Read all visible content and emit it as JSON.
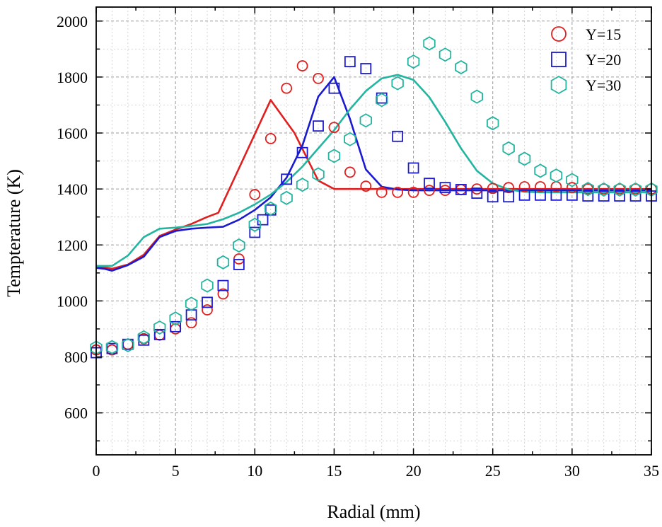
{
  "chart_data": {
    "type": "scatter",
    "xlabel": "Radial (mm)",
    "ylabel": "Tempterature (K)",
    "xlim": [
      0,
      35
    ],
    "ylim": [
      450,
      2050
    ],
    "xticks": [
      0,
      5,
      10,
      15,
      20,
      25,
      30,
      35
    ],
    "yticks": [
      600,
      800,
      1000,
      1200,
      1400,
      1600,
      1800,
      2000
    ],
    "grid": true,
    "legend_position": "top-right",
    "series": [
      {
        "name": "Y=15",
        "marker": "circle",
        "color": "#e02020",
        "points": [
          [
            0,
            825
          ],
          [
            1,
            825
          ],
          [
            2,
            845
          ],
          [
            3,
            865
          ],
          [
            4,
            878
          ],
          [
            5,
            900
          ],
          [
            6,
            922
          ],
          [
            7,
            968
          ],
          [
            8,
            1025
          ],
          [
            9,
            1150
          ],
          [
            10,
            1380
          ],
          [
            11,
            1580
          ],
          [
            12,
            1760
          ],
          [
            13,
            1840
          ],
          [
            14,
            1795
          ],
          [
            15,
            1620
          ],
          [
            16,
            1460
          ],
          [
            17,
            1410
          ],
          [
            18,
            1388
          ],
          [
            19,
            1388
          ],
          [
            20,
            1388
          ],
          [
            21,
            1395
          ],
          [
            22,
            1395
          ],
          [
            23,
            1398
          ],
          [
            24,
            1400
          ],
          [
            25,
            1402
          ],
          [
            26,
            1405
          ],
          [
            27,
            1408
          ],
          [
            28,
            1408
          ],
          [
            29,
            1408
          ],
          [
            30,
            1405
          ],
          [
            31,
            1400
          ],
          [
            32,
            1400
          ],
          [
            33,
            1400
          ],
          [
            34,
            1400
          ],
          [
            35,
            1400
          ]
        ],
        "line": [
          [
            0,
            1125
          ],
          [
            1,
            1115
          ],
          [
            2,
            1130
          ],
          [
            3,
            1165
          ],
          [
            4,
            1232
          ],
          [
            5,
            1255
          ],
          [
            6,
            1275
          ],
          [
            7,
            1300
          ],
          [
            7.7,
            1315
          ],
          [
            11,
            1718
          ],
          [
            12.5,
            1600
          ],
          [
            14,
            1430
          ],
          [
            15,
            1400
          ],
          [
            35,
            1400
          ]
        ]
      },
      {
        "name": "Y=20",
        "marker": "square",
        "color": "#1a1ad0",
        "points": [
          [
            0,
            815
          ],
          [
            1,
            830
          ],
          [
            2,
            845
          ],
          [
            3,
            860
          ],
          [
            4,
            880
          ],
          [
            5,
            908
          ],
          [
            6,
            950
          ],
          [
            7,
            995
          ],
          [
            8,
            1055
          ],
          [
            9,
            1130
          ],
          [
            10,
            1245
          ],
          [
            10.5,
            1290
          ],
          [
            11,
            1325
          ],
          [
            12,
            1435
          ],
          [
            13,
            1530
          ],
          [
            14,
            1625
          ],
          [
            15,
            1760
          ],
          [
            16,
            1855
          ],
          [
            17,
            1830
          ],
          [
            18,
            1725
          ],
          [
            19,
            1588
          ],
          [
            20,
            1475
          ],
          [
            21,
            1420
          ],
          [
            22,
            1405
          ],
          [
            23,
            1398
          ],
          [
            24,
            1385
          ],
          [
            25,
            1372
          ],
          [
            26,
            1372
          ],
          [
            27,
            1378
          ],
          [
            28,
            1378
          ],
          [
            29,
            1378
          ],
          [
            30,
            1378
          ],
          [
            31,
            1375
          ],
          [
            32,
            1375
          ],
          [
            33,
            1375
          ],
          [
            34,
            1375
          ],
          [
            35,
            1375
          ]
        ],
        "line": [
          [
            0,
            1118
          ],
          [
            0.5,
            1115
          ],
          [
            1,
            1108
          ],
          [
            2,
            1128
          ],
          [
            3,
            1158
          ],
          [
            4,
            1228
          ],
          [
            5,
            1250
          ],
          [
            6,
            1258
          ],
          [
            7,
            1262
          ],
          [
            8,
            1265
          ],
          [
            9,
            1290
          ],
          [
            10,
            1325
          ],
          [
            11,
            1370
          ],
          [
            12,
            1440
          ],
          [
            13,
            1555
          ],
          [
            14,
            1730
          ],
          [
            15,
            1800
          ],
          [
            16,
            1650
          ],
          [
            17,
            1470
          ],
          [
            18,
            1408
          ],
          [
            19,
            1398
          ],
          [
            20,
            1395
          ],
          [
            35,
            1395
          ]
        ]
      },
      {
        "name": "Y=30",
        "marker": "hexagon",
        "color": "#22b5a0",
        "points": [
          [
            0,
            833
          ],
          [
            1,
            835
          ],
          [
            2,
            842
          ],
          [
            3,
            870
          ],
          [
            4,
            905
          ],
          [
            5,
            937
          ],
          [
            6,
            990
          ],
          [
            7,
            1055
          ],
          [
            8,
            1138
          ],
          [
            9,
            1198
          ],
          [
            10,
            1272
          ],
          [
            11,
            1330
          ],
          [
            12,
            1368
          ],
          [
            13,
            1415
          ],
          [
            14,
            1452
          ],
          [
            15,
            1518
          ],
          [
            16,
            1578
          ],
          [
            17,
            1645
          ],
          [
            18,
            1718
          ],
          [
            19,
            1778
          ],
          [
            20,
            1855
          ],
          [
            21,
            1920
          ],
          [
            22,
            1880
          ],
          [
            23,
            1835
          ],
          [
            24,
            1730
          ],
          [
            25,
            1635
          ],
          [
            26,
            1545
          ],
          [
            27,
            1508
          ],
          [
            28,
            1465
          ],
          [
            29,
            1448
          ],
          [
            30,
            1432
          ],
          [
            31,
            1400
          ],
          [
            32,
            1398
          ],
          [
            33,
            1398
          ],
          [
            34,
            1398
          ],
          [
            35,
            1398
          ]
        ],
        "line": [
          [
            0,
            1125
          ],
          [
            1,
            1125
          ],
          [
            2,
            1162
          ],
          [
            3,
            1228
          ],
          [
            4,
            1258
          ],
          [
            5,
            1262
          ],
          [
            6,
            1268
          ],
          [
            7,
            1275
          ],
          [
            8,
            1292
          ],
          [
            9,
            1315
          ],
          [
            10,
            1345
          ],
          [
            11,
            1380
          ],
          [
            12,
            1425
          ],
          [
            13,
            1480
          ],
          [
            14,
            1545
          ],
          [
            15,
            1610
          ],
          [
            16,
            1685
          ],
          [
            17,
            1750
          ],
          [
            18,
            1795
          ],
          [
            19,
            1808
          ],
          [
            20,
            1790
          ],
          [
            21,
            1728
          ],
          [
            22,
            1640
          ],
          [
            23,
            1545
          ],
          [
            24,
            1465
          ],
          [
            25,
            1420
          ],
          [
            26,
            1398
          ],
          [
            27,
            1390
          ],
          [
            28,
            1388
          ],
          [
            35,
            1388
          ]
        ]
      }
    ]
  }
}
